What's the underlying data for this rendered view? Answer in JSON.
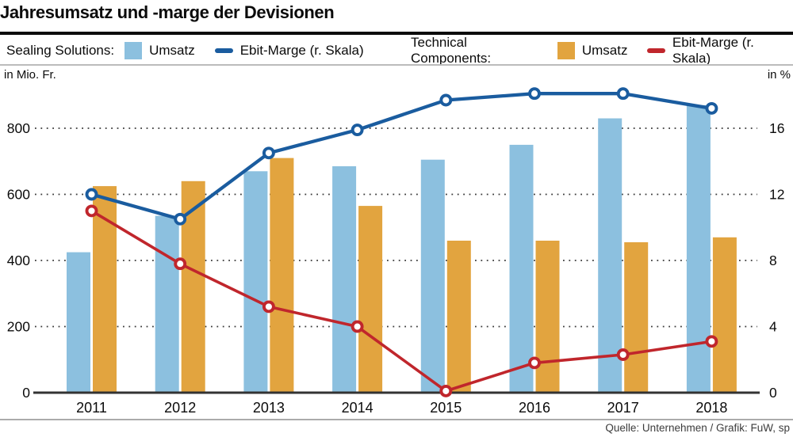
{
  "title": "Jahresumsatz und -marge der Devisionen",
  "legend": {
    "groups": [
      {
        "label": "Sealing Solutions:",
        "bar_label": "Umsatz",
        "line_label": "Ebit-Marge (r. Skala)",
        "bar_color": "#8CC0DF",
        "line_color": "#1A5C9F"
      },
      {
        "label": "Technical Components:",
        "bar_label": "Umsatz",
        "line_label": "Ebit-Marge (r. Skala)",
        "bar_color": "#E2A43F",
        "line_color": "#C0262C"
      }
    ]
  },
  "axes": {
    "left_unit": "in Mio. Fr.",
    "right_unit": "in %",
    "left_ticks": [
      0,
      200,
      400,
      600,
      800
    ],
    "right_ticks": [
      0,
      4,
      8,
      12,
      16
    ]
  },
  "footer": "Quelle: Unternehmen / Grafik: FuW, sp",
  "chart_data": {
    "type": "bar+line combo",
    "title": "Jahresumsatz und -marge der Devisionen",
    "categories": [
      "2011",
      "2012",
      "2013",
      "2014",
      "2015",
      "2016",
      "2017",
      "2018"
    ],
    "left_axis": {
      "label": "in Mio. Fr.",
      "ticks": [
        0,
        200,
        400,
        600,
        800
      ],
      "range": [
        0,
        950
      ]
    },
    "right_axis": {
      "label": "in %",
      "ticks": [
        0,
        4,
        8,
        12,
        16
      ],
      "range": [
        0,
        19
      ]
    },
    "grid": "dotted horizontal",
    "legend_position": "top row, two groups",
    "series": [
      {
        "name": "Sealing Solutions Umsatz",
        "group": "Sealing Solutions:",
        "label": "Umsatz",
        "type": "bar",
        "axis": "left",
        "color": "#8CC0DF",
        "values": [
          425,
          535,
          670,
          685,
          705,
          750,
          830,
          870
        ]
      },
      {
        "name": "Technical Components Umsatz",
        "group": "Technical Components:",
        "label": "Umsatz",
        "type": "bar",
        "axis": "left",
        "color": "#E2A43F",
        "values": [
          625,
          640,
          710,
          565,
          460,
          460,
          455,
          470
        ]
      },
      {
        "name": "Sealing Solutions Ebit-Marge",
        "group": "Sealing Solutions:",
        "label": "Ebit-Marge (r. Skala)",
        "type": "line",
        "axis": "right",
        "color": "#1A5C9F",
        "values": [
          12.0,
          10.5,
          14.5,
          15.9,
          17.7,
          18.1,
          18.1,
          17.2
        ]
      },
      {
        "name": "Technical Components Ebit-Marge",
        "group": "Technical Components:",
        "label": "Ebit-Marge (r. Skala)",
        "type": "line",
        "axis": "right",
        "color": "#C0262C",
        "values": [
          11.0,
          7.8,
          5.2,
          4.0,
          0.1,
          1.8,
          2.3,
          3.1
        ]
      }
    ]
  }
}
